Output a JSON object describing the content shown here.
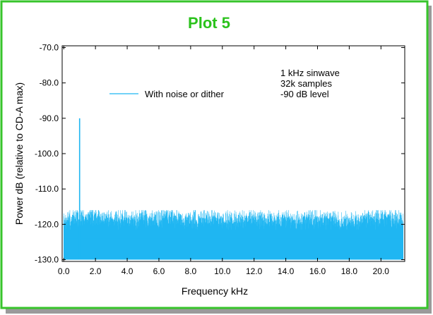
{
  "chart_data": {
    "type": "line",
    "title": "Plot 5",
    "xlabel": "Frequency   kHz",
    "ylabel": "Power   dB (relative to CD-A max)",
    "xlim": [
      -0.1,
      21.5
    ],
    "ylim": [
      -130.5,
      -69.5
    ],
    "x_ticks": [
      0,
      2,
      4,
      6,
      8,
      10,
      12,
      14,
      16,
      18,
      20
    ],
    "x_tick_labels": [
      "0.0",
      "2.0",
      "4.0",
      "6.0",
      "8.0",
      "10.0",
      "12.0",
      "14.0",
      "16.0",
      "18.0",
      "20.0"
    ],
    "y_ticks": [
      -70,
      -80,
      -90,
      -100,
      -110,
      -120,
      -130
    ],
    "y_tick_labels": [
      "-70.0",
      "-80.0",
      "-90.0",
      "-100.0",
      "-110.0",
      "-120.0",
      "-130.0"
    ],
    "grid": false,
    "legend_position": "top-left",
    "annotation": [
      "1 kHz sinwave",
      "32k samples",
      "-90 dB level"
    ],
    "series": [
      {
        "name": "With noise or dither",
        "color": "#1fb6f2",
        "peak": {
          "x": 1.0,
          "y": -90.0
        },
        "noise_floor_range": [
          -130.0,
          -117.5
        ],
        "x": [
          0.0,
          0.5,
          1.0,
          1.5,
          2.0,
          2.5,
          3.0,
          3.5,
          4.0,
          4.5,
          5.0,
          5.5,
          6.0,
          6.5,
          7.0,
          7.5,
          8.0,
          8.5,
          9.0,
          9.5,
          10.0,
          10.5,
          11.0,
          11.5,
          12.0,
          12.5,
          13.0,
          13.5,
          14.0,
          14.5,
          15.0,
          15.5,
          16.0,
          16.5,
          17.0,
          17.5,
          18.0,
          18.5,
          19.0,
          19.5,
          20.0,
          20.5,
          21.0,
          21.4
        ],
        "y": [
          -119.0,
          -118.5,
          -90.0,
          -118.0,
          -117.0,
          -118.5,
          -118.0,
          -118.5,
          -118.0,
          -119.0,
          -118.0,
          -118.5,
          -118.5,
          -117.5,
          -118.0,
          -118.5,
          -118.0,
          -119.0,
          -118.0,
          -118.5,
          -118.0,
          -118.5,
          -118.5,
          -118.0,
          -118.0,
          -118.5,
          -118.0,
          -118.5,
          -118.0,
          -118.5,
          -119.0,
          -118.5,
          -118.0,
          -118.5,
          -118.0,
          -119.0,
          -118.5,
          -119.0,
          -118.0,
          -118.5,
          -117.5,
          -118.0,
          -118.0,
          -119.0
        ]
      }
    ]
  },
  "frame": {
    "border_color": "#37c42b",
    "title_color": "#2bc21c"
  }
}
